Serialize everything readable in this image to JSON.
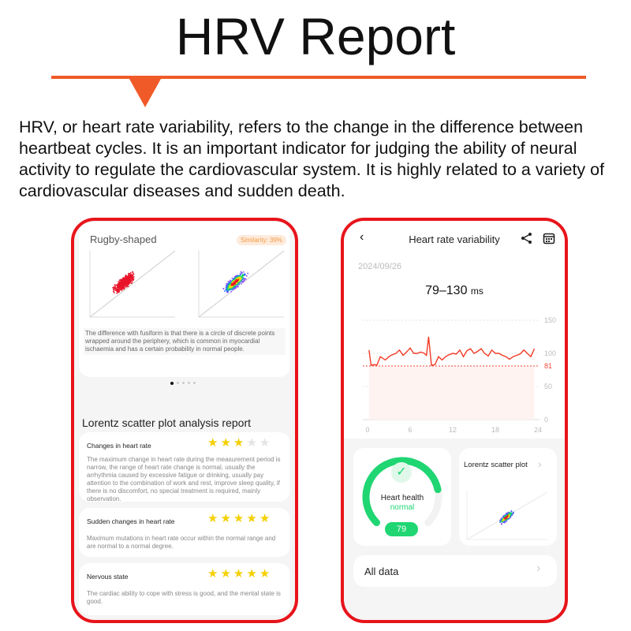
{
  "header": {
    "title": "HRV Report",
    "intro": "HRV, or heart rate variability, refers to the change in the difference between heartbeat cycles. It is an important indicator for judging the ability of neural activity to regulate the cardiovascular system. It is highly related to a variety of cardiovascular diseases and sudden death."
  },
  "left_phone": {
    "shape_card": {
      "title": "Rugby-shaped",
      "similarity": "Similarity: 39%",
      "description": "The difference with fusiform is that there is a circle of discrete points wrapped around the periphery, which is common in myocardial ischaemia and has a certain probability in normal people.",
      "page_dots": 5,
      "active_dot": 1
    },
    "report_title": "Lorentz scatter plot analysis report",
    "items": [
      {
        "title": "Changes in heart rate",
        "stars": 3,
        "max_stars": 5,
        "text": "The maximum change in heart rate during the measurement period is narrow, the range of heart rate change is normal, usually the arrhythmia caused by excessive fatigue or drinking, usually pay attention to the combination of work and rest, improve sleep quality, if there is no discomfort, no special treatment is required, mainly observation."
      },
      {
        "title": "Sudden changes in heart rate",
        "stars": 5,
        "max_stars": 5,
        "text": "Maximum mutations in heart rate occur within the normal range and are normal to a normal degree."
      },
      {
        "title": "Nervous state",
        "stars": 5,
        "max_stars": 5,
        "text": "The cardiac ability to cope with stress is good, and the mental state is good."
      }
    ]
  },
  "right_phone": {
    "nav": {
      "title": "Heart rate variability",
      "back_icon": "chevron-left-icon",
      "share_icon": "share-icon",
      "calendar_icon": "calendar-icon"
    },
    "date": "2024/09/26",
    "range": "79–130",
    "range_unit": "ms",
    "health": {
      "label": "Heart health",
      "status": "normal",
      "score": "79",
      "score_fraction": 0.79,
      "color": "#1fd672"
    },
    "lorentz_label": "Lorentz scatter plot",
    "all_data": "All data",
    "chart_data": {
      "type": "line",
      "xlim": [
        0,
        24
      ],
      "ylim": [
        0,
        150
      ],
      "x_ticks": [
        "0",
        "6",
        "12",
        "18",
        "24"
      ],
      "y_ticks": [
        "0",
        "50",
        "100",
        "150"
      ],
      "reference_line": {
        "value": 81,
        "label": "81",
        "color": "#f04a3a"
      },
      "line_color": "#f23a26",
      "x": [
        0.2,
        0.5,
        1,
        1.3,
        1.8,
        2.5,
        3,
        3.5,
        4,
        4.5,
        5,
        5.5,
        6,
        6.5,
        7,
        7.5,
        8,
        8.3,
        8.6,
        9,
        9.5,
        10,
        10.5,
        11,
        11.5,
        12,
        12.5,
        13,
        13.5,
        14,
        14.5,
        15,
        15.5,
        16,
        16.5,
        17,
        17.5,
        18,
        18.5,
        19,
        19.5,
        20,
        20.5,
        21,
        21.5,
        22,
        22.5,
        23,
        23.5
      ],
      "y": [
        105,
        82,
        83,
        82,
        95,
        90,
        95,
        98,
        100,
        105,
        97,
        102,
        108,
        100,
        100,
        102,
        100,
        97,
        125,
        82,
        83,
        95,
        90,
        95,
        98,
        100,
        99,
        105,
        95,
        104,
        107,
        100,
        103,
        107,
        100,
        96,
        105,
        100,
        100,
        97,
        95,
        91,
        95,
        97,
        99,
        105,
        100,
        95,
        107
      ]
    }
  }
}
